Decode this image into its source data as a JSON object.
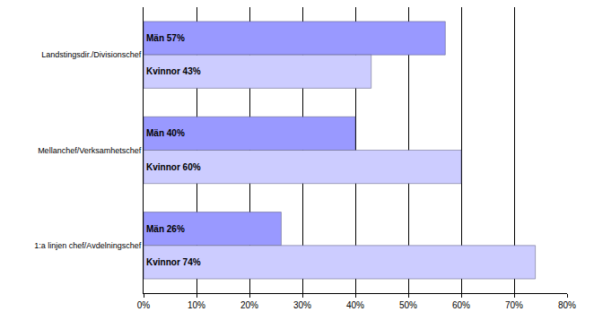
{
  "chart_data": {
    "type": "bar",
    "orientation": "horizontal",
    "categories": [
      "Landstingsdir./Divisionschef",
      "Mellanchef/Verksamhetschef",
      "1:a linjen chef/Avdelningschef"
    ],
    "series": [
      {
        "name": "Män",
        "color": "#9999ff",
        "values": [
          57,
          40,
          26
        ],
        "value_labels": [
          "Män 57%",
          "Män 40%",
          "Män 26%"
        ]
      },
      {
        "name": "Kvinnor",
        "color": "#ccccff",
        "values": [
          43,
          60,
          74
        ],
        "value_labels": [
          "Kvinnor 43%",
          "Kvinnor 60%",
          "Kvinnor 74%"
        ]
      }
    ],
    "xlim": [
      0,
      80
    ],
    "xticks": [
      {
        "value": 0,
        "label": "0%"
      },
      {
        "value": 10,
        "label": "10%"
      },
      {
        "value": 20,
        "label": "20%"
      },
      {
        "value": 30,
        "label": "30%"
      },
      {
        "value": 40,
        "label": "40%"
      },
      {
        "value": 50,
        "label": "50%"
      },
      {
        "value": 60,
        "label": "60%"
      },
      {
        "value": 70,
        "label": "70%"
      },
      {
        "value": 80,
        "label": "80%"
      }
    ],
    "grid": true,
    "data_labels": true
  }
}
